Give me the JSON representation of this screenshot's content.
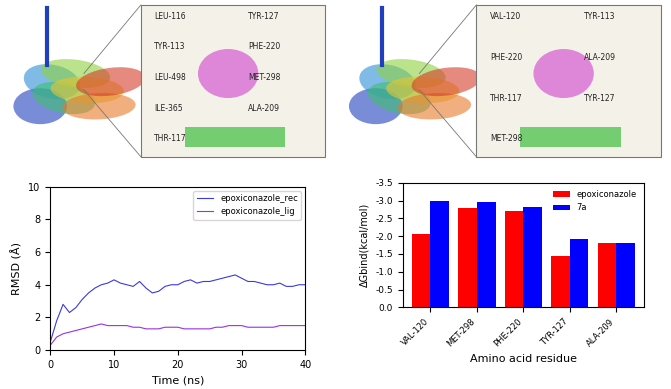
{
  "docking_panels": [
    {
      "residues": [
        "LEU-116",
        "TYR-113",
        "LEU-498",
        "ILE-365",
        "THR-117",
        "TYR-127",
        "PHE-220",
        "MET-298",
        "ALA-209"
      ]
    },
    {
      "residues": [
        "VAL-120",
        "PHE-220",
        "THR-117",
        "MET-298",
        "TYR-113",
        "ALA-209",
        "TYR-127"
      ]
    }
  ],
  "chart_data": [
    {
      "type": "line",
      "x_label": "Time (ns)",
      "y_label": "RMSD (Å)",
      "x": [
        0,
        1,
        2,
        3,
        4,
        5,
        6,
        7,
        8,
        9,
        10,
        11,
        12,
        13,
        14,
        15,
        16,
        17,
        18,
        19,
        20,
        21,
        22,
        23,
        24,
        25,
        26,
        27,
        28,
        29,
        30,
        31,
        32,
        33,
        34,
        35,
        36,
        37,
        38,
        39,
        40
      ],
      "series": [
        {
          "name": "epoxiconazole_rec",
          "color": "#3a3adf",
          "values": [
            0.5,
            1.8,
            2.8,
            2.3,
            2.6,
            3.1,
            3.5,
            3.8,
            4.0,
            4.1,
            4.3,
            4.1,
            4.0,
            3.9,
            4.2,
            3.8,
            3.5,
            3.6,
            3.9,
            4.0,
            4.0,
            4.2,
            4.3,
            4.1,
            4.2,
            4.2,
            4.3,
            4.4,
            4.5,
            4.6,
            4.4,
            4.2,
            4.2,
            4.1,
            4.0,
            4.0,
            4.1,
            3.9,
            3.9,
            4.0,
            4.0
          ]
        },
        {
          "name": "epoxiconazole_lig",
          "color": "#9b30e0",
          "values": [
            0.3,
            0.8,
            1.0,
            1.1,
            1.2,
            1.3,
            1.4,
            1.5,
            1.6,
            1.5,
            1.5,
            1.5,
            1.5,
            1.4,
            1.4,
            1.3,
            1.3,
            1.3,
            1.4,
            1.4,
            1.4,
            1.3,
            1.3,
            1.3,
            1.3,
            1.3,
            1.4,
            1.4,
            1.5,
            1.5,
            1.5,
            1.4,
            1.4,
            1.4,
            1.4,
            1.4,
            1.5,
            1.5,
            1.5,
            1.5,
            1.5
          ]
        }
      ],
      "xlim": [
        0,
        40
      ],
      "xticks": [
        0,
        10,
        20,
        30,
        40
      ],
      "ylim": [
        0,
        10
      ],
      "yticks": [
        0,
        2,
        4,
        6,
        8,
        10
      ],
      "legend": "upper right"
    },
    {
      "type": "bar",
      "x_label": "Amino acid residue",
      "y_label": "ΔGbind(kcal/mol)",
      "categories": [
        "VAL-120",
        "MET-298",
        "PHE-220",
        "TYR-127",
        "ALA-209"
      ],
      "series": [
        {
          "name": "epoxiconazole",
          "color": "#ff0000",
          "values": [
            -2.05,
            -2.78,
            -2.7,
            -1.45,
            -1.8
          ]
        },
        {
          "name": "7a",
          "color": "#0000ff",
          "values": [
            -2.98,
            -2.95,
            -2.82,
            -1.93,
            -1.82
          ]
        }
      ],
      "ylim": [
        0.0,
        -3.5
      ],
      "yticks": [
        0.0,
        -0.5,
        -1.0,
        -1.5,
        -2.0,
        -2.5,
        -3.0,
        -3.5
      ],
      "legend": "upper right"
    }
  ]
}
